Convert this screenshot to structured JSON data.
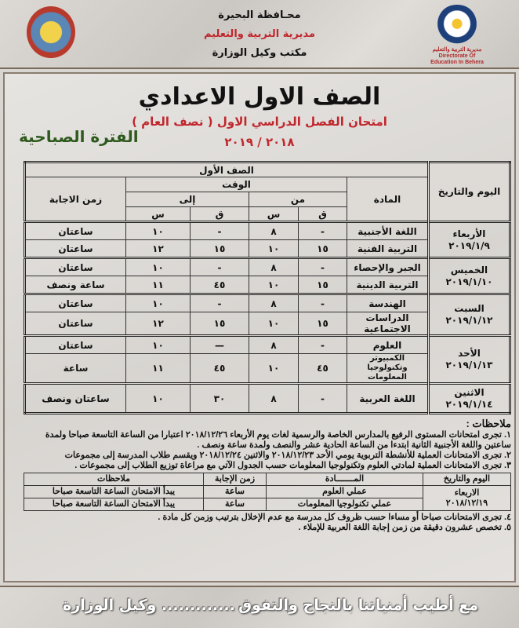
{
  "header": {
    "governorate": "محـافظة البحيرة",
    "directorate": "مديرية التربية والتعليم",
    "office": "مكتب وكيل الوزارة",
    "left_logo": "governorate-logo",
    "right_logo": "directorate-logo",
    "right_logo_text": "مديرية التربية والتعليم Directorate Of Education In Behera"
  },
  "title": "الصف الاول الاعدادي",
  "subtitle": "امتحان الفصل الدراسي الاول",
  "subtitle_paren": "( نصف العام )",
  "year": "٢٠١٨ / ٢٠١٩",
  "period": "الفترة الصباحية",
  "table": {
    "grade": "الصف الأول",
    "day_date": "اليوم والتاريخ",
    "subject": "المادة",
    "time": "الوقت",
    "from": "من",
    "to": "إلى",
    "min": "ق",
    "hour": "س",
    "duration": "زمن الاجابة",
    "days": [
      {
        "day": "الأربعاء",
        "date": "٢٠١٩/١/٩",
        "rows": [
          {
            "subject": "اللغة الأجنبية",
            "from_m": "-",
            "from_h": "٨",
            "to_m": "-",
            "to_h": "١٠",
            "duration": "ساعتان"
          },
          {
            "subject": "التربية الفنية",
            "from_m": "١٥",
            "from_h": "١٠",
            "to_m": "١٥",
            "to_h": "١٢",
            "duration": "ساعتان"
          }
        ]
      },
      {
        "day": "الخميس",
        "date": "٢٠١٩/١/١٠",
        "rows": [
          {
            "subject": "الجبر والإحصاء",
            "from_m": "-",
            "from_h": "٨",
            "to_m": "-",
            "to_h": "١٠",
            "duration": "ساعتان"
          },
          {
            "subject": "التربية الدينية",
            "from_m": "١٥",
            "from_h": "١٠",
            "to_m": "٤٥",
            "to_h": "١١",
            "duration": "ساعة ونصف"
          }
        ]
      },
      {
        "day": "السبت",
        "date": "٢٠١٩/١/١٢",
        "rows": [
          {
            "subject": "الهندسة",
            "from_m": "-",
            "from_h": "٨",
            "to_m": "-",
            "to_h": "١٠",
            "duration": "ساعتان"
          },
          {
            "subject": "الدراسات الاجتماعية",
            "from_m": "١٥",
            "from_h": "١٠",
            "to_m": "١٥",
            "to_h": "١٢",
            "duration": "ساعتان"
          }
        ]
      },
      {
        "day": "الأحد",
        "date": "٢٠١٩/١/١٣",
        "rows": [
          {
            "subject": "العلوم",
            "from_m": "-",
            "from_h": "٨",
            "to_m": "—",
            "to_h": "١٠",
            "duration": "ساعتان"
          },
          {
            "subject": "الكمبيوتر وتكنولوجيا المعلومات",
            "from_m": "٤٥",
            "from_h": "١٠",
            "to_m": "٤٥",
            "to_h": "١١",
            "duration": "ساعة"
          }
        ]
      },
      {
        "day": "الاثنين",
        "date": "٢٠١٩/١/١٤",
        "rows": [
          {
            "subject": "اللغة العربية",
            "from_m": "-",
            "from_h": "٨",
            "to_m": "٣٠",
            "to_h": "١٠",
            "duration": "ساعتان ونصف"
          }
        ]
      }
    ]
  },
  "notes": {
    "heading": "ملاحظات :",
    "items": [
      "١.  تجرى امتحانات المستوى الرفيع بالمدارس الخاصة والرسمية لغات يوم الأربعاء ٢٠١٨/١٢/٢٦ اعتبارا من الساعة التاسعة صباحا ولمدة ساعتين واللغة الأجنبية الثانية ابتدءا من الساعة الحادية عشر والنصف ولمدة ساعة ونصف .",
      "٢.  تجرى الامتحانات العملية للأنشطة التربوية يومي الأحد ٢٠١٨/١٢/٢٣ والاثنين ٢٠١٨/١٢/٢٤ ويقسم طلاب المدرسة إلى مجموعات",
      "٣.  تجرى الامتحانات العملية لمادتي العلوم وتكنولوجيا المعلومات حسب الجدول الآتي مع مراعاة توزيع الطلاب إلى مجموعات .",
      "٤.  تجرى الامتحانات صباحا أو مساءا حسب ظروف كل مدرسة مع عدم الإخلال بترتيب وزمن كل مادة .",
      "٥.  تخصص عشرون دقيقة من زمن إجابة اللغة العربية للإملاء ."
    ]
  },
  "practical": {
    "headers": [
      "اليوم والتاريخ",
      "المـــــــادة",
      "زمن الإجابة",
      "ملاحظات"
    ],
    "day": "الاربعاء",
    "date": "٢٠١٨/١٢/١٩",
    "rows": [
      {
        "subject": "عملي العلوم",
        "duration": "ساعة",
        "note": "يبدأ الامتحان الساعة التاسعة صباحا"
      },
      {
        "subject": "عملي تكنولوجيا المعلومات",
        "duration": "ساعة",
        "note": "يبدأ الامتحان الساعة التاسعة صباحا"
      }
    ]
  },
  "footer": {
    "wish": "مع أطيب أمنياتنا بالنجاح والتفوق",
    "signature": "............. وكيل الوزارة"
  },
  "colors": {
    "title": "#1a1a1a",
    "subtitle": "#c0272d",
    "period": "#2f5a1e",
    "directorate": "#c0272d"
  }
}
